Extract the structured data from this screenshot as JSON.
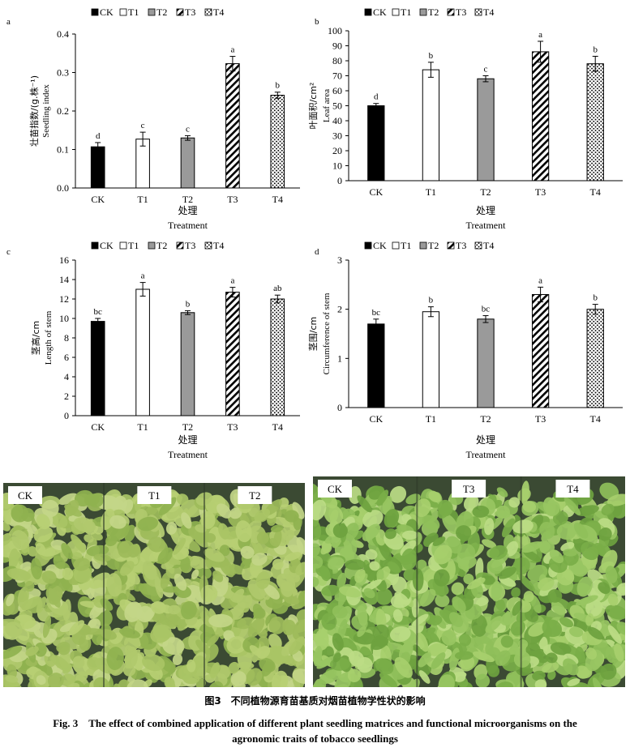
{
  "charts": [
    {
      "letter": "a",
      "ylabel_zh": "壮苗指数/(g.株⁻¹)",
      "ylabel_en": "Seedling index",
      "xlabel_zh": "处理",
      "xlabel_en": "Treatment",
      "ylim": [
        0,
        0.4
      ],
      "yticks": [
        0,
        0.1,
        0.2,
        0.3,
        0.4
      ],
      "ytick_labels": [
        "0.0",
        "0.1",
        "0.2",
        "0.3",
        "0.4"
      ]
    },
    {
      "letter": "b",
      "ylabel_zh": "叶面积/cm²",
      "ylabel_en": "Leaf area",
      "xlabel_zh": "处理",
      "xlabel_en": "Treatment",
      "ylim": [
        0,
        100
      ],
      "yticks": [
        0,
        10,
        20,
        30,
        40,
        50,
        60,
        70,
        80,
        90,
        100
      ],
      "ytick_labels": [
        "0",
        "10",
        "20",
        "30",
        "40",
        "50",
        "60",
        "70",
        "80",
        "90",
        "100"
      ]
    },
    {
      "letter": "c",
      "ylabel_zh": "茎高/cm",
      "ylabel_en": "Length of stem",
      "xlabel_zh": "处理",
      "xlabel_en": "Treatment",
      "ylim": [
        0,
        16
      ],
      "yticks": [
        0,
        2,
        4,
        6,
        8,
        10,
        12,
        14,
        16
      ],
      "ytick_labels": [
        "0",
        "2",
        "4",
        "6",
        "8",
        "10",
        "12",
        "14",
        "16"
      ]
    },
    {
      "letter": "d",
      "ylabel_zh": "茎围/cm",
      "ylabel_en": "Circumference of stem",
      "xlabel_zh": "处理",
      "xlabel_en": "Treatment",
      "ylim": [
        0,
        3
      ],
      "yticks": [
        0,
        1,
        2,
        3
      ],
      "ytick_labels": [
        "0",
        "1",
        "2",
        "3"
      ]
    }
  ],
  "chart_data": [
    {
      "type": "bar",
      "categories": [
        "CK",
        "T1",
        "T2",
        "T3",
        "T4"
      ],
      "values": [
        0.107,
        0.127,
        0.13,
        0.323,
        0.241
      ],
      "errors": [
        0.011,
        0.018,
        0.006,
        0.019,
        0.008
      ],
      "letters": [
        "d",
        "c",
        "c",
        "a",
        "b"
      ],
      "xlabel": "处理 Treatment",
      "ylabel": "壮苗指数/(g.株⁻¹) Seedling index",
      "ylim": [
        0,
        0.4
      ],
      "legend": [
        "CK",
        "T1",
        "T2",
        "T3",
        "T4"
      ],
      "legend_position": "top-left"
    },
    {
      "type": "bar",
      "categories": [
        "CK",
        "T1",
        "T2",
        "T3",
        "T4"
      ],
      "values": [
        50,
        74,
        68,
        86,
        78
      ],
      "errors": [
        1.5,
        5,
        2,
        7,
        5
      ],
      "letters": [
        "d",
        "b",
        "c",
        "a",
        "b"
      ],
      "xlabel": "处理 Treatment",
      "ylabel": "叶面积/cm² Leaf area",
      "ylim": [
        0,
        100
      ],
      "legend": [
        "CK",
        "T1",
        "T2",
        "T3",
        "T4"
      ],
      "legend_position": "top-left"
    },
    {
      "type": "bar",
      "categories": [
        "CK",
        "T1",
        "T2",
        "T3",
        "T4"
      ],
      "values": [
        9.7,
        13.0,
        10.6,
        12.7,
        12.0
      ],
      "errors": [
        0.3,
        0.7,
        0.2,
        0.5,
        0.4
      ],
      "letters": [
        "bc",
        "a",
        "b",
        "a",
        "ab"
      ],
      "xlabel": "处理 Treatment",
      "ylabel": "茎高/cm Length of stem",
      "ylim": [
        0,
        16
      ],
      "legend": [
        "CK",
        "T1",
        "T2",
        "T3",
        "T4"
      ],
      "legend_position": "top-left"
    },
    {
      "type": "bar",
      "categories": [
        "CK",
        "T1",
        "T2",
        "T3",
        "T4"
      ],
      "values": [
        1.7,
        1.95,
        1.8,
        2.3,
        2.0
      ],
      "errors": [
        0.1,
        0.1,
        0.07,
        0.15,
        0.1
      ],
      "letters": [
        "bc",
        "b",
        "bc",
        "a",
        "b"
      ],
      "xlabel": "处理 Treatment",
      "ylabel": "茎围/cm Circumference of stem",
      "ylim": [
        0,
        3
      ],
      "legend": [
        "CK",
        "T1",
        "T2",
        "T3",
        "T4"
      ],
      "legend_position": "top-left"
    }
  ],
  "series_styles": [
    {
      "name": "CK",
      "fill": "#000000",
      "pattern": "solid"
    },
    {
      "name": "T1",
      "fill": "#ffffff",
      "pattern": "solid"
    },
    {
      "name": "T2",
      "fill": "#9a9a9a",
      "pattern": "solid"
    },
    {
      "name": "T3",
      "fill": "#ffffff",
      "pattern": "diagonal-hatch"
    },
    {
      "name": "T4",
      "fill": "#ffffff",
      "pattern": "dots"
    }
  ],
  "photos": [
    {
      "labels": [
        "CK",
        "T1",
        "T2"
      ]
    },
    {
      "labels": [
        "CK",
        "T3",
        "T4"
      ]
    }
  ],
  "caption": {
    "zh": "图3　不同植物源育苗基质对烟苗植物学性状的影响",
    "en_line1": "Fig. 3　The effect of combined application of different plant seedling matrices and functional microorganisms on the",
    "en_line2": "agronomic traits of tobacco seedlings"
  }
}
